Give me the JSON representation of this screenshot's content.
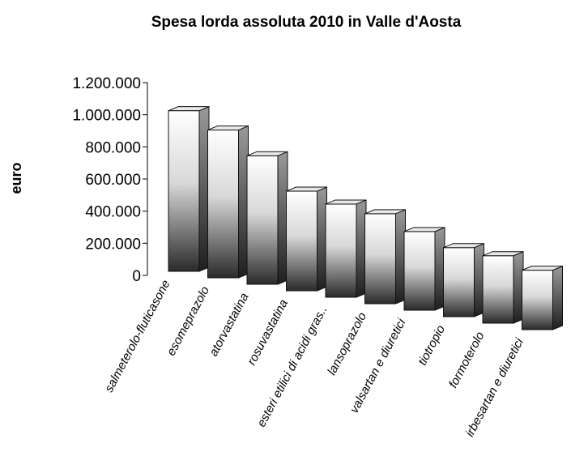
{
  "chart_data": {
    "type": "bar3d",
    "title": "Spesa lorda assoluta 2010 in Valle d'Aosta",
    "y_label": "euro",
    "categories": [
      "salmeterolo-fluticasone",
      "esomeprazolo",
      "atorvastatina",
      "rosuvastatina",
      "esteri etilici di acidi gras..",
      "lansoprazolo",
      "valsartan e diuretici",
      "tiotropio",
      "formoterolo",
      "irbesartan e diuretici"
    ],
    "values": [
      1000000,
      920000,
      800000,
      620000,
      580000,
      560000,
      490000,
      430000,
      420000,
      370000
    ],
    "ylim": [
      0,
      1200000
    ],
    "yticks": [
      0,
      {
        "value": 200000,
        "label": "200.000"
      },
      {
        "value": 400000,
        "label": "400.000"
      },
      {
        "value": 600000,
        "label": "600.000"
      },
      {
        "value": 800000,
        "label": "800.000"
      },
      {
        "value": 1000000,
        "label": "1.000.000"
      },
      {
        "value": 1200000,
        "label": "1.200.000"
      }
    ],
    "color": "#555555"
  }
}
